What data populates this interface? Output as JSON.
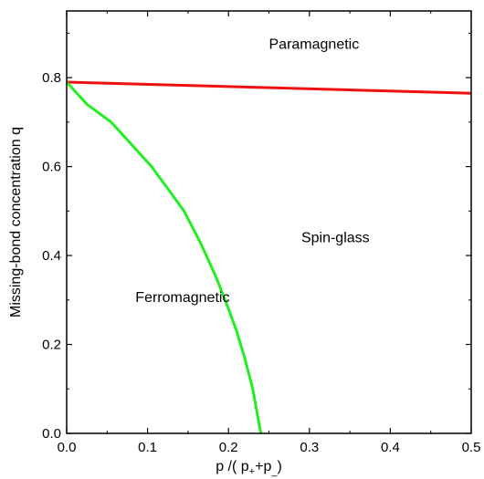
{
  "chart_data": {
    "type": "line",
    "xlabel": "p /(p+p)",
    "xlabel_parts": {
      "main": "p /( p",
      "sub1": "+",
      "mid": "+p",
      "sub2": "_",
      "end": ")"
    },
    "ylabel": "Missing-bond concentration q",
    "xlim": [
      0,
      0.5
    ],
    "ylim": [
      0,
      0.95
    ],
    "x_ticks": [
      0.0,
      0.1,
      0.2,
      0.3,
      0.4,
      0.5
    ],
    "x_tick_labels": [
      "0.0",
      "0.1",
      "0.2",
      "0.3",
      "0.4",
      "0.5"
    ],
    "y_ticks": [
      0.0,
      0.2,
      0.4,
      0.6,
      0.8
    ],
    "y_tick_labels": [
      "0.0",
      "0.2",
      "0.4",
      "0.6",
      "0.8"
    ],
    "grid": false,
    "series": [
      {
        "color": "#ee1111",
        "x": [
          0.0,
          0.5
        ],
        "y": [
          0.79,
          0.765
        ]
      },
      {
        "color": "#22ee22",
        "x": [
          0.0,
          0.025,
          0.055,
          0.08,
          0.105,
          0.125,
          0.145,
          0.165,
          0.185,
          0.2,
          0.21,
          0.22,
          0.23,
          0.235,
          0.24
        ],
        "y": [
          0.79,
          0.74,
          0.7,
          0.65,
          0.6,
          0.55,
          0.5,
          0.43,
          0.35,
          0.28,
          0.23,
          0.17,
          0.1,
          0.05,
          0.0
        ]
      }
    ],
    "annotations": [
      {
        "text": "Paramagnetic",
        "x": 0.25,
        "y": 0.865
      },
      {
        "text": "Spin-glass",
        "x": 0.29,
        "y": 0.43
      },
      {
        "text": "Ferromagnetic",
        "x": 0.085,
        "y": 0.295
      }
    ]
  }
}
